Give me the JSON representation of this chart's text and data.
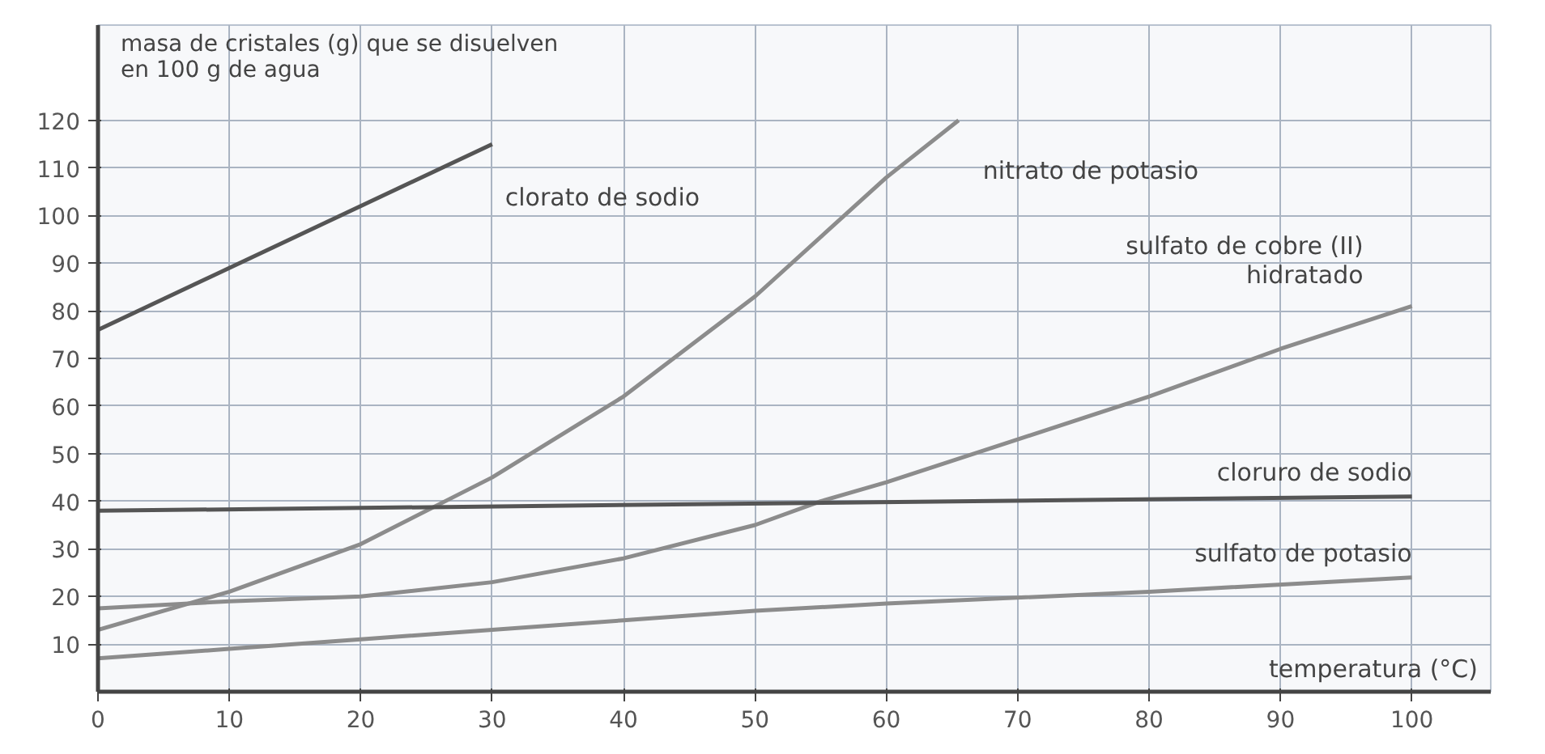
{
  "chart_data": {
    "type": "line",
    "xlabel": "temperatura (°C)",
    "ylabel": "masa de cristales (g) que se disuelven\nen 100 g de agua",
    "xlim": [
      0,
      106
    ],
    "ylim": [
      0,
      140
    ],
    "xticks": [
      0,
      10,
      20,
      30,
      40,
      50,
      60,
      70,
      80,
      90,
      100
    ],
    "yticks": [
      10,
      20,
      30,
      40,
      50,
      60,
      70,
      80,
      90,
      100,
      110,
      120
    ],
    "grid": true,
    "line_style": "solid",
    "marker": "none",
    "series": [
      {
        "name": "clorato de sodio",
        "color": "#555555",
        "x": [
          0,
          30
        ],
        "values": [
          76,
          115
        ]
      },
      {
        "name": "nitrato de potasio",
        "color": "#8c8c8c",
        "x": [
          0,
          10,
          20,
          30,
          40,
          50,
          60,
          65.5
        ],
        "values": [
          13,
          21,
          31,
          45,
          62,
          83,
          108,
          120
        ]
      },
      {
        "name": "sulfato de cobre (II)\nhidratado",
        "color": "#8c8c8c",
        "x": [
          0,
          10,
          20,
          30,
          40,
          50,
          55,
          60,
          70,
          80,
          90,
          100
        ],
        "values": [
          17.5,
          19,
          20,
          23,
          28,
          35,
          40,
          44,
          53,
          62,
          72,
          81
        ]
      },
      {
        "name": "cloruro de sodio",
        "color": "#555555",
        "x": [
          0,
          100
        ],
        "values": [
          38,
          41
        ]
      },
      {
        "name": "sulfato de potasio",
        "color": "#8c8c8c",
        "x": [
          0,
          10,
          20,
          30,
          40,
          50,
          60,
          80,
          100
        ],
        "values": [
          7,
          9,
          11,
          13,
          15,
          17,
          18.5,
          21,
          24
        ]
      }
    ]
  }
}
